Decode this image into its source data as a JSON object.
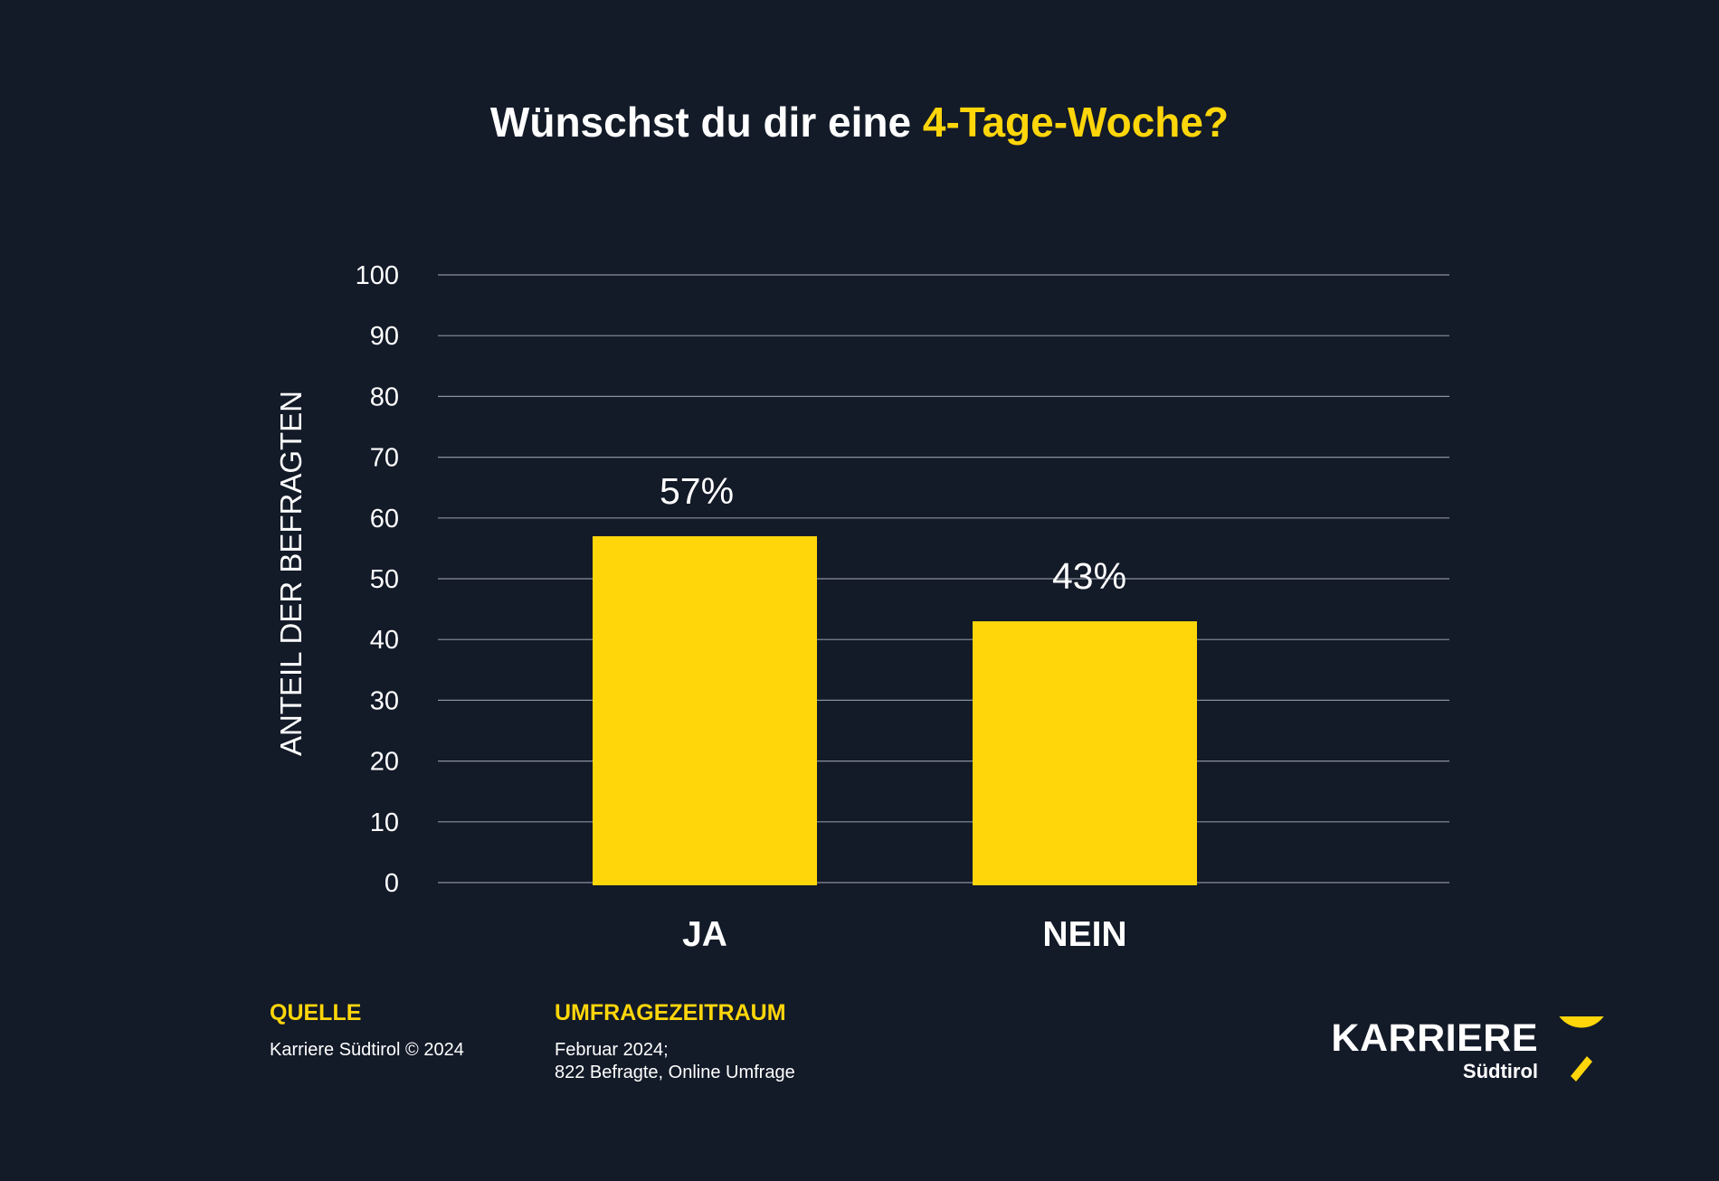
{
  "title": {
    "part1": "Wünschst du dir eine ",
    "part2": "4-Tage-Woche?"
  },
  "chart_data": {
    "type": "bar",
    "categories": [
      "JA",
      "NEIN"
    ],
    "values": [
      57,
      43
    ],
    "data_labels": [
      "57%",
      "43%"
    ],
    "title": "Wünschst du dir eine 4-Tage-Woche?",
    "xlabel": "",
    "ylabel": "ANTEIL DER BEFRAGTEN",
    "ylim": [
      0,
      100
    ],
    "yticks": [
      0,
      10,
      20,
      30,
      40,
      50,
      60,
      70,
      80,
      90,
      100
    ],
    "grid": true,
    "legend": "none",
    "bar_color": "#ffd60a",
    "grid_color": "#8a909b"
  },
  "footer": {
    "source_label": "QUELLE",
    "source_text": "Karriere Südtirol © 2024",
    "period_label": "UMFRAGEZEITRAUM",
    "period_line1": "Februar 2024;",
    "period_line2": "822 Befragte, Online Umfrage"
  },
  "logo": {
    "word": "KARRIERE",
    "sub": "Südtirol",
    "icon": "location-pin-icon"
  },
  "colors": {
    "background": "#131a28",
    "accent": "#ffd60a",
    "text": "#ffffff"
  }
}
